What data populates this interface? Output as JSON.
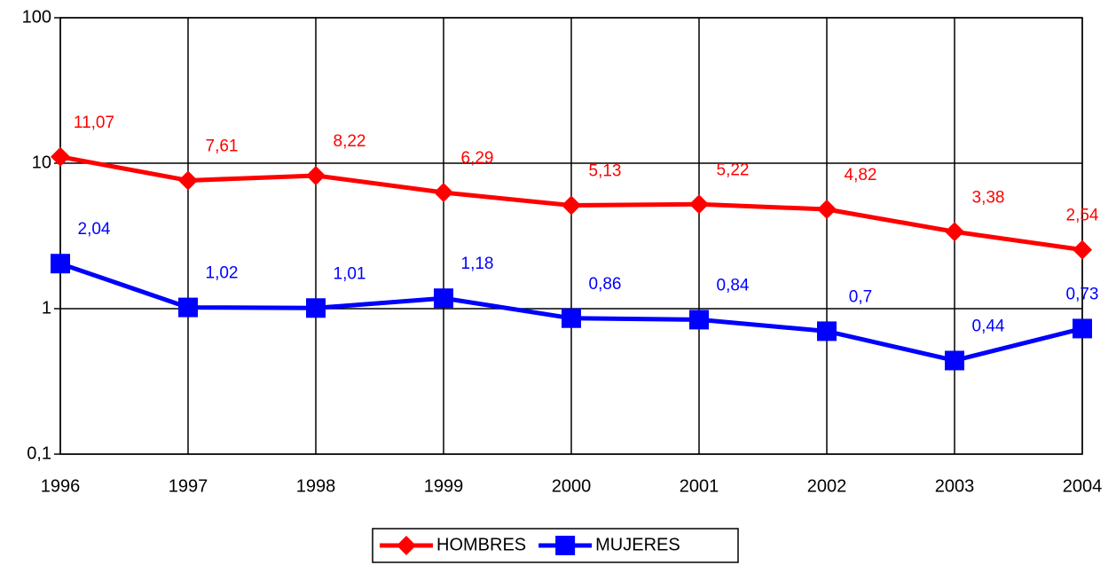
{
  "chart_data": {
    "type": "line",
    "categories": [
      "1996",
      "1997",
      "1998",
      "1999",
      "2000",
      "2001",
      "2002",
      "2003",
      "2004"
    ],
    "series": [
      {
        "name": "HOMBRES",
        "color": "#ff0000",
        "marker": "diamond",
        "values": [
          11.07,
          7.61,
          8.22,
          6.29,
          5.13,
          5.22,
          4.82,
          3.38,
          2.54
        ],
        "value_labels": [
          "11,07",
          "7,61",
          "8,22",
          "6,29",
          "5,13",
          "5,22",
          "4,82",
          "3,38",
          "2,54"
        ]
      },
      {
        "name": "MUJERES",
        "color": "#0000ff",
        "marker": "square",
        "values": [
          2.04,
          1.02,
          1.01,
          1.18,
          0.86,
          0.84,
          0.7,
          0.44,
          0.73
        ],
        "value_labels": [
          "2,04",
          "1,02",
          "1,01",
          "1,18",
          "0,86",
          "0,84",
          "0,7",
          "0,44",
          "0,73"
        ]
      }
    ],
    "ylim": [
      0.1,
      100
    ],
    "yticks": [
      {
        "value": 0.1,
        "label": "0,1"
      },
      1,
      10,
      100
    ],
    "log_scale": true,
    "grid": true,
    "legend": "bottom"
  }
}
